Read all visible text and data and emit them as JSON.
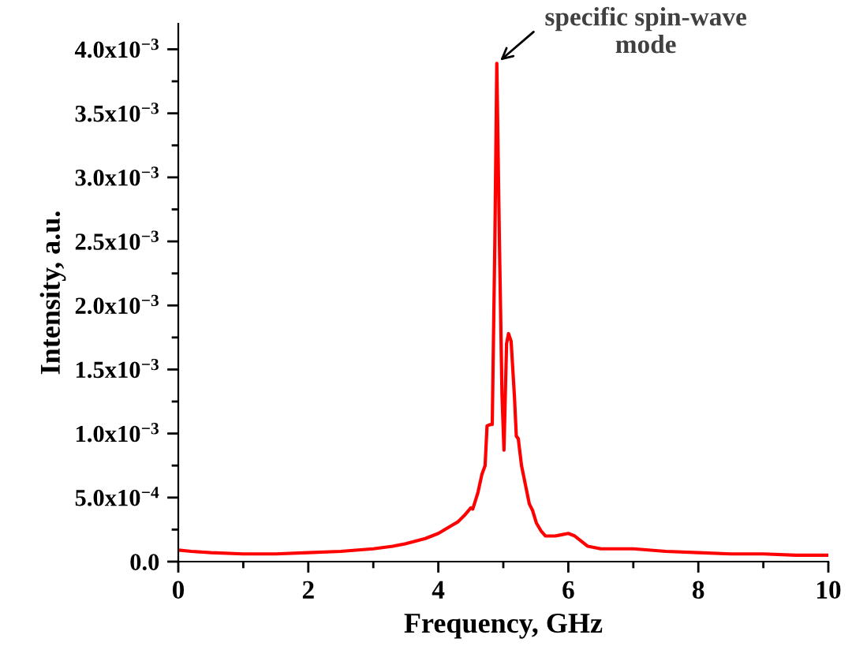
{
  "chart_data": {
    "type": "line",
    "xlabel": "Frequency, GHz",
    "ylabel": "Intensity, a.u.",
    "x": [
      0,
      0.2,
      0.5,
      1,
      1.5,
      2,
      2.5,
      3,
      3.3,
      3.5,
      3.8,
      4,
      4.2,
      4.3,
      4.4,
      4.5,
      4.53,
      4.61,
      4.67,
      4.72,
      4.75,
      4.8,
      4.83,
      4.87,
      4.9,
      4.94,
      4.98,
      5.01,
      5.05,
      5.08,
      5.12,
      5.17,
      5.2,
      5.23,
      5.28,
      5.32,
      5.36,
      5.4,
      5.45,
      5.51,
      5.58,
      5.65,
      5.8,
      5.9,
      6.0,
      6.1,
      6.2,
      6.3,
      6.5,
      7,
      7.5,
      8,
      8.5,
      9,
      9.5,
      10
    ],
    "series": [
      {
        "color": "#ff0000",
        "values": [
          9e-05,
          8e-05,
          7e-05,
          6e-05,
          6e-05,
          7e-05,
          8e-05,
          0.0001,
          0.00012,
          0.00014,
          0.00018,
          0.00022,
          0.00028,
          0.00031,
          0.00036,
          0.00042,
          0.00041,
          0.00054,
          0.00068,
          0.00075,
          0.00106,
          0.00107,
          0.00107,
          0.0025,
          0.00389,
          0.0025,
          0.0013,
          0.00087,
          0.0017,
          0.00178,
          0.00172,
          0.0013,
          0.00098,
          0.00096,
          0.00075,
          0.00065,
          0.00055,
          0.00045,
          0.0004,
          0.0003,
          0.00024,
          0.0002,
          0.0002,
          0.00021,
          0.00022,
          0.0002,
          0.00016,
          0.00012,
          0.0001,
          0.0001,
          8e-05,
          7e-05,
          6e-05,
          6e-05,
          5e-05,
          5e-05
        ]
      }
    ],
    "xlim": [
      0,
      10
    ],
    "xticks": [
      0,
      2,
      4,
      6,
      8,
      10
    ],
    "ylim": [
      0,
      0.0042
    ],
    "yticks": [
      {
        "value": 0,
        "label": "0.0"
      },
      {
        "value": 0.0005,
        "label": "5.0x10$^{−4}$"
      },
      {
        "value": 0.001,
        "label": "1.0x10$^{−3}$"
      },
      {
        "value": 0.0015,
        "label": "1.5x10$^{−3}$"
      },
      {
        "value": 0.002,
        "label": "2.0x10$^{−3}$"
      },
      {
        "value": 0.0025,
        "label": "2.5x10$^{−3}$"
      },
      {
        "value": 0.003,
        "label": "3.0x10$^{−3}$"
      },
      {
        "value": 0.0035,
        "label": "3.5x10$^{−3}$"
      },
      {
        "value": 0.004,
        "label": "4.0x10$^{−3}$"
      }
    ],
    "annotations": [
      {
        "text": "specific spin-wave\nmode",
        "x": 4.9,
        "y": 0.00389
      }
    ],
    "marker": "none",
    "line_style": "solid"
  }
}
